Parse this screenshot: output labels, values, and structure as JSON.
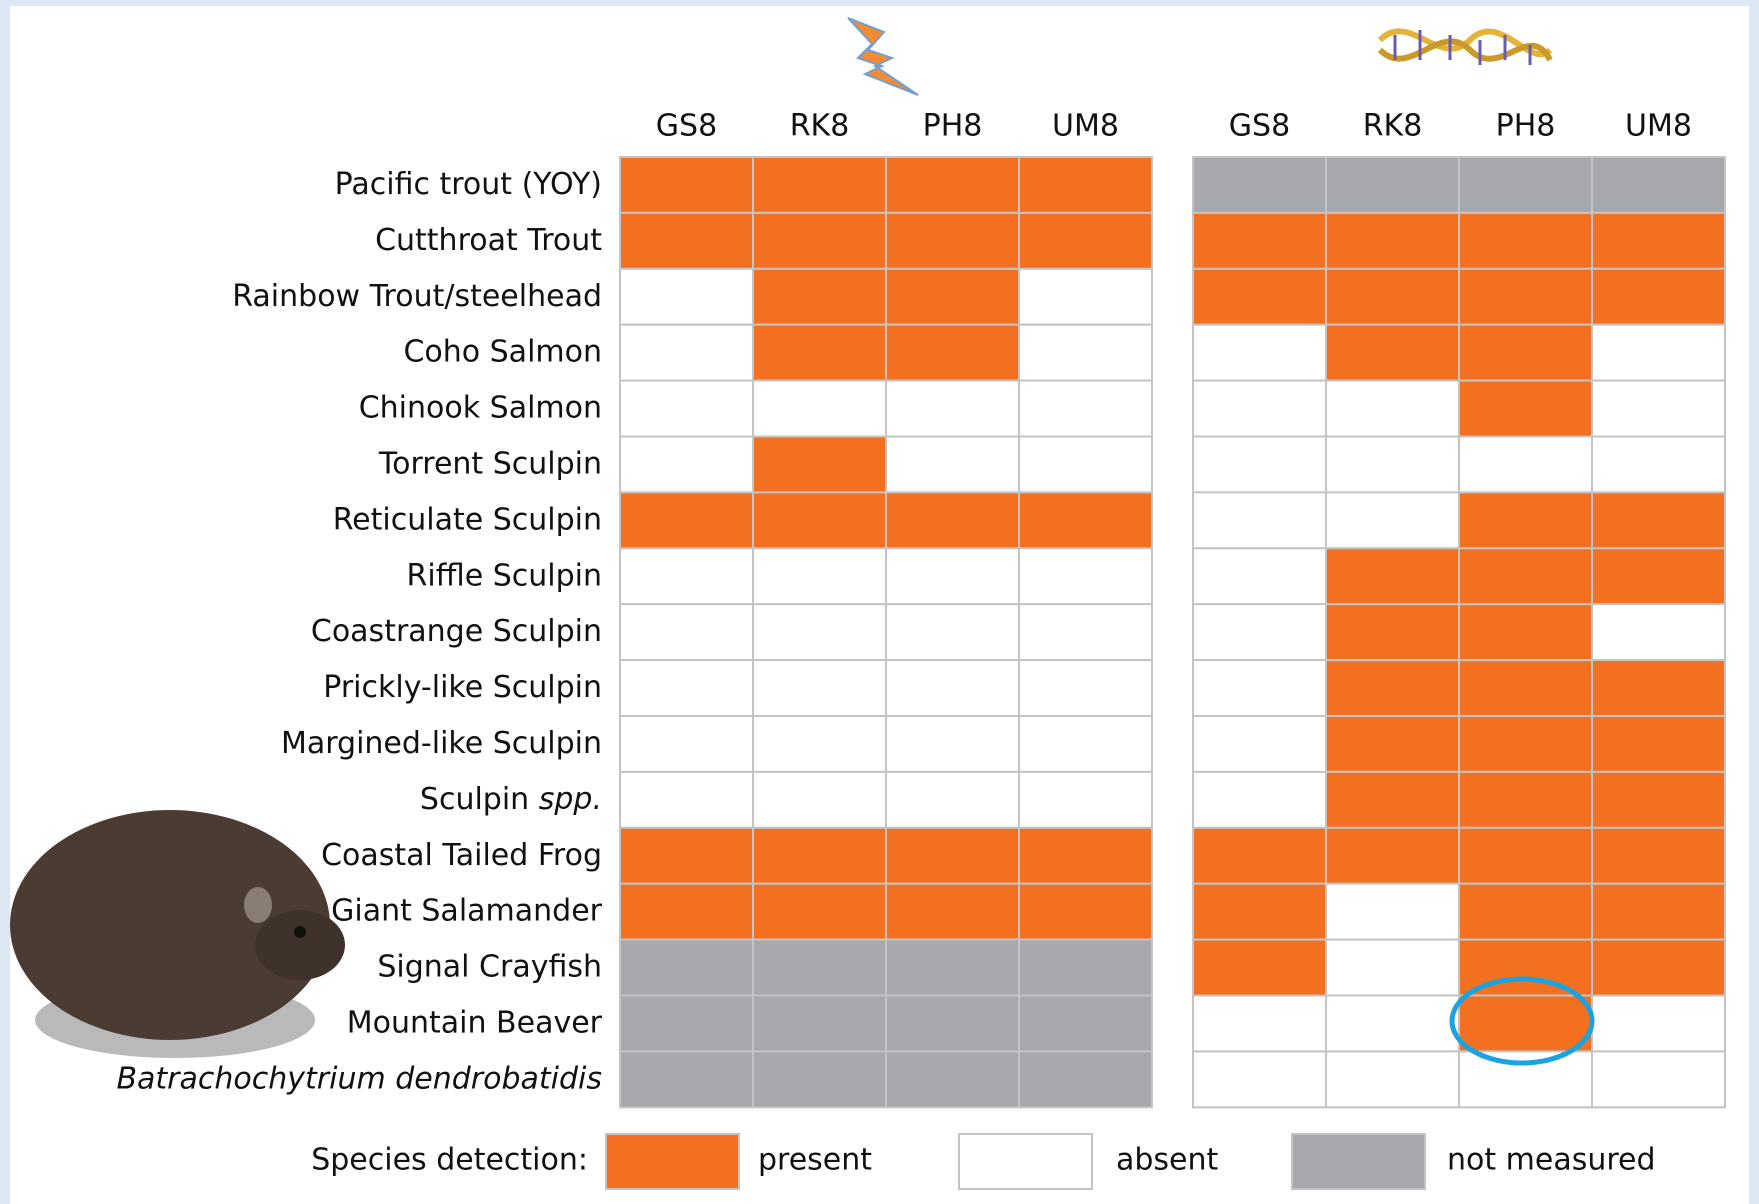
{
  "legend": {
    "title": "Species detection:",
    "items": [
      {
        "label": "present",
        "color": "#f37021"
      },
      {
        "label": "absent",
        "color": "#ffffff"
      },
      {
        "label": "not measured",
        "color": "#a6a8ab"
      }
    ]
  },
  "rows": [
    {
      "label": "Pacific trout (YOY)"
    },
    {
      "label": "Cutthroat Trout"
    },
    {
      "label": "Rainbow Trout/steelhead"
    },
    {
      "label": "Coho Salmon"
    },
    {
      "label": "Chinook Salmon"
    },
    {
      "label": "Torrent Sculpin"
    },
    {
      "label": "Reticulate Sculpin"
    },
    {
      "label": "Riffle Sculpin"
    },
    {
      "label": "Coastrange Sculpin"
    },
    {
      "label": "Prickly-like Sculpin"
    },
    {
      "label": "Margined-like Sculpin"
    },
    {
      "label": "Sculpin",
      "italic_suffix": "spp."
    },
    {
      "label": "Coastal Tailed Frog"
    },
    {
      "label": "Giant Salamander"
    },
    {
      "label": "Signal Crayfish"
    },
    {
      "label": "Mountain Beaver"
    },
    {
      "label": "Batrachochytrium dendrobatidis",
      "italic": true
    }
  ],
  "panels": [
    {
      "columns": [
        "GS8",
        "RK8",
        "PH8",
        "UM8"
      ],
      "cells": [
        [
          0,
          0,
          0,
          0
        ],
        [
          0,
          0,
          0,
          0
        ],
        [
          1,
          0,
          0,
          1
        ],
        [
          1,
          0,
          0,
          1
        ],
        [
          1,
          1,
          1,
          1
        ],
        [
          1,
          0,
          1,
          1
        ],
        [
          0,
          0,
          0,
          0
        ],
        [
          1,
          1,
          1,
          1
        ],
        [
          1,
          1,
          1,
          1
        ],
        [
          1,
          1,
          1,
          1
        ],
        [
          1,
          1,
          1,
          1
        ],
        [
          1,
          1,
          1,
          1
        ],
        [
          0,
          0,
          0,
          0
        ],
        [
          0,
          0,
          0,
          0
        ],
        [
          2,
          2,
          2,
          2
        ],
        [
          2,
          2,
          2,
          2
        ],
        [
          2,
          2,
          2,
          2
        ]
      ]
    },
    {
      "columns": [
        "GS8",
        "RK8",
        "PH8",
        "UM8"
      ],
      "cells": [
        [
          2,
          2,
          2,
          2
        ],
        [
          0,
          0,
          0,
          0
        ],
        [
          0,
          0,
          0,
          0
        ],
        [
          1,
          0,
          0,
          1
        ],
        [
          1,
          1,
          0,
          1
        ],
        [
          1,
          1,
          1,
          1
        ],
        [
          1,
          1,
          0,
          0
        ],
        [
          1,
          0,
          0,
          0
        ],
        [
          1,
          0,
          0,
          1
        ],
        [
          1,
          0,
          0,
          0
        ],
        [
          1,
          0,
          0,
          0
        ],
        [
          1,
          0,
          0,
          0
        ],
        [
          0,
          0,
          0,
          0
        ],
        [
          0,
          1,
          0,
          0
        ],
        [
          0,
          1,
          0,
          0
        ],
        [
          1,
          1,
          0,
          1
        ],
        [
          1,
          1,
          1,
          1
        ]
      ]
    }
  ]
}
